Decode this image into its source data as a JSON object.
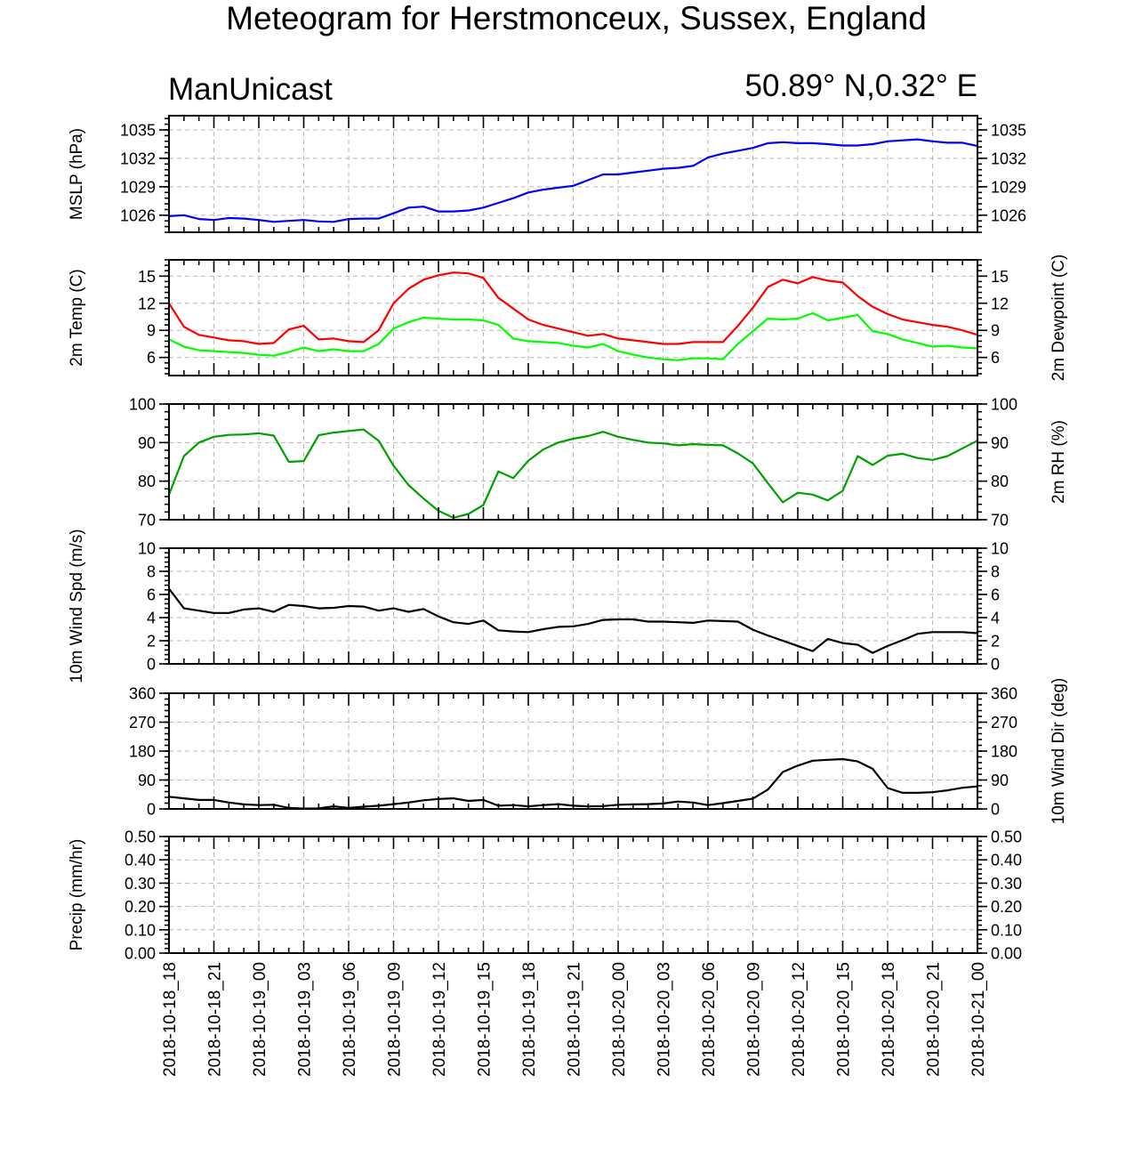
{
  "page": {
    "title": "Meteogram for Herstmonceux, Sussex, England",
    "model": "ManUnicast",
    "location": "50.89° N,0.32° E"
  },
  "chart_data": {
    "type": "line",
    "x_labels": [
      "2018-10-18_18",
      "2018-10-18_21",
      "2018-10-19_00",
      "2018-10-19_03",
      "2018-10-19_06",
      "2018-10-19_09",
      "2018-10-19_12",
      "2018-10-19_15",
      "2018-10-19_18",
      "2018-10-19_21",
      "2018-10-20_00",
      "2018-10-20_03",
      "2018-10-20_06",
      "2018-10-20_09",
      "2018-10-20_12",
      "2018-10-20_15",
      "2018-10-20_18",
      "2018-10-20_21",
      "2018-10-21_00"
    ],
    "x_range_hours": [
      0,
      54
    ],
    "time_hours": [
      0,
      1,
      2,
      3,
      4,
      5,
      6,
      7,
      8,
      9,
      10,
      11,
      12,
      13,
      14,
      15,
      16,
      17,
      18,
      19,
      20,
      21,
      22,
      23,
      24,
      25,
      26,
      27,
      28,
      29,
      30,
      31,
      32,
      33,
      34,
      35,
      36,
      37,
      38,
      39,
      40,
      41,
      42,
      43,
      44,
      45,
      46,
      47,
      48,
      49,
      50,
      51,
      52,
      53,
      54
    ],
    "panels": [
      {
        "id": "mslp",
        "ylabel_left": "MSLP (hPa)",
        "ylabel_right": "",
        "ylim": [
          1024.2,
          1036.5
        ],
        "ticks": [
          1026,
          1029,
          1032,
          1035
        ],
        "tick_labels": [
          "1026",
          "1029",
          "1032",
          "1035"
        ],
        "right_tick_labels": true,
        "series": [
          {
            "color": "#0000ff",
            "values": [
              1025.9,
              1026.0,
              1025.6,
              1025.5,
              1025.7,
              1025.65,
              1025.5,
              1025.3,
              1025.4,
              1025.5,
              1025.35,
              1025.3,
              1025.6,
              1025.65,
              1025.65,
              1026.2,
              1026.8,
              1026.9,
              1026.4,
              1026.4,
              1026.5,
              1026.8,
              1027.3,
              1027.8,
              1028.4,
              1028.7,
              1028.9,
              1029.1,
              1029.7,
              1030.3,
              1030.3,
              1030.5,
              1030.7,
              1030.9,
              1031.0,
              1031.2,
              1032.1,
              1032.5,
              1032.8,
              1033.1,
              1033.6,
              1033.7,
              1033.6,
              1033.6,
              1033.5,
              1033.35,
              1033.35,
              1033.5,
              1033.8,
              1033.9,
              1034.0,
              1033.8,
              1033.65,
              1033.65,
              1033.3
            ]
          }
        ]
      },
      {
        "id": "temp",
        "ylabel_left": "2m Temp (C)",
        "ylabel_right": "2m Dewpoint (C)",
        "ylim": [
          4,
          16.8
        ],
        "ticks": [
          6,
          9,
          12,
          15
        ],
        "tick_labels": [
          "6",
          "9",
          "12",
          "15"
        ],
        "right_tick_labels": true,
        "series": [
          {
            "color": "#ff0000",
            "values": [
              12.0,
              9.4,
              8.5,
              8.2,
              7.9,
              7.8,
              7.5,
              7.6,
              9.1,
              9.5,
              8.0,
              8.1,
              7.8,
              7.7,
              9.0,
              12.0,
              13.6,
              14.6,
              15.1,
              15.4,
              15.3,
              14.8,
              12.6,
              11.4,
              10.2,
              9.6,
              9.2,
              8.8,
              8.4,
              8.6,
              8.1,
              7.9,
              7.7,
              7.5,
              7.5,
              7.7,
              7.7,
              7.7,
              9.5,
              11.5,
              13.8,
              14.6,
              14.2,
              14.9,
              14.5,
              14.3,
              12.8,
              11.6,
              10.8,
              10.2,
              9.9,
              9.6,
              9.4,
              9.0,
              8.5
            ]
          },
          {
            "color": "#00ff00",
            "values": [
              8.0,
              7.2,
              6.8,
              6.7,
              6.6,
              6.5,
              6.3,
              6.2,
              6.6,
              7.1,
              6.7,
              6.9,
              6.7,
              6.7,
              7.5,
              9.2,
              9.9,
              10.4,
              10.3,
              10.2,
              10.2,
              10.1,
              9.6,
              8.1,
              7.8,
              7.7,
              7.6,
              7.3,
              7.1,
              7.5,
              6.7,
              6.3,
              6.0,
              5.8,
              5.7,
              5.9,
              5.9,
              5.8,
              7.5,
              8.9,
              10.3,
              10.2,
              10.3,
              10.9,
              10.1,
              10.4,
              10.7,
              8.9,
              8.6,
              8.0,
              7.6,
              7.2,
              7.3,
              7.1,
              7.0
            ]
          }
        ]
      },
      {
        "id": "rh",
        "ylabel_left": "",
        "ylabel_right": "2m RH (%)",
        "ylim": [
          70,
          100
        ],
        "ticks": [
          70,
          80,
          90,
          100
        ],
        "tick_labels": [
          "70",
          "80",
          "90",
          "100"
        ],
        "right_tick_labels": true,
        "series": [
          {
            "color": "#00a000",
            "values": [
              76.5,
              86.5,
              90.0,
              91.5,
              92.0,
              92.1,
              92.4,
              91.8,
              85.0,
              85.2,
              91.9,
              92.6,
              93.0,
              93.4,
              90.5,
              84.0,
              79.0,
              75.5,
              72.3,
              70.5,
              71.5,
              73.8,
              82.5,
              80.8,
              85.3,
              88.2,
              90.0,
              91.0,
              91.7,
              92.8,
              91.5,
              90.7,
              90.0,
              89.8,
              89.3,
              89.6,
              89.4,
              89.3,
              87.2,
              84.6,
              79.5,
              74.5,
              77.0,
              76.5,
              75.0,
              77.5,
              86.5,
              84.2,
              86.6,
              87.1,
              86.0,
              85.5,
              86.5,
              88.5,
              90.5
            ]
          }
        ]
      },
      {
        "id": "wspd",
        "ylabel_left": "10m Wind Spd (m/s)",
        "ylabel_right": "",
        "ylim": [
          0,
          10
        ],
        "ticks": [
          0,
          2,
          4,
          6,
          8,
          10
        ],
        "tick_labels": [
          "0",
          "2",
          "4",
          "6",
          "8",
          "10"
        ],
        "right_tick_labels": true,
        "series": [
          {
            "color": "#000000",
            "values": [
              6.5,
              4.8,
              4.6,
              4.4,
              4.4,
              4.7,
              4.8,
              4.5,
              5.1,
              5.0,
              4.8,
              4.85,
              5.0,
              4.95,
              4.6,
              4.8,
              4.5,
              4.75,
              4.1,
              3.6,
              3.45,
              3.75,
              2.9,
              2.8,
              2.75,
              3.0,
              3.2,
              3.25,
              3.45,
              3.8,
              3.85,
              3.85,
              3.65,
              3.65,
              3.6,
              3.55,
              3.75,
              3.7,
              3.65,
              2.95,
              2.45,
              2.0,
              1.55,
              1.1,
              2.15,
              1.8,
              1.65,
              0.95,
              1.55,
              2.05,
              2.6,
              2.75,
              2.75,
              2.75,
              2.65
            ]
          }
        ]
      },
      {
        "id": "wdir",
        "ylabel_left": "",
        "ylabel_right": "10m Wind Dir (deg)",
        "ylim": [
          0,
          360
        ],
        "ticks": [
          0,
          90,
          180,
          270,
          360
        ],
        "tick_labels": [
          "0",
          "90",
          "180",
          "270",
          "360"
        ],
        "right_tick_labels": true,
        "series": [
          {
            "color": "#000000",
            "values": [
              38,
              33,
              28,
              28,
              20,
              14,
              12,
              13,
              3,
              1,
              2,
              8,
              3,
              7,
              10,
              15,
              20,
              27,
              31,
              33,
              25,
              28,
              10,
              12,
              8,
              12,
              15,
              10,
              8,
              9,
              13,
              14,
              15,
              17,
              23,
              20,
              12,
              18,
              25,
              32,
              60,
              115,
              135,
              150,
              153,
              155,
              148,
              125,
              65,
              50,
              50,
              52,
              58,
              66,
              70
            ]
          }
        ]
      },
      {
        "id": "precip",
        "ylabel_left": "Precip (mm/hr)",
        "ylabel_right": "",
        "ylim": [
          0,
          0.5
        ],
        "ticks": [
          0,
          0.1,
          0.2,
          0.3,
          0.4,
          0.5
        ],
        "tick_labels": [
          "0.00",
          "0.10",
          "0.20",
          "0.30",
          "0.40",
          "0.50"
        ],
        "right_tick_labels": true,
        "series": []
      }
    ]
  }
}
